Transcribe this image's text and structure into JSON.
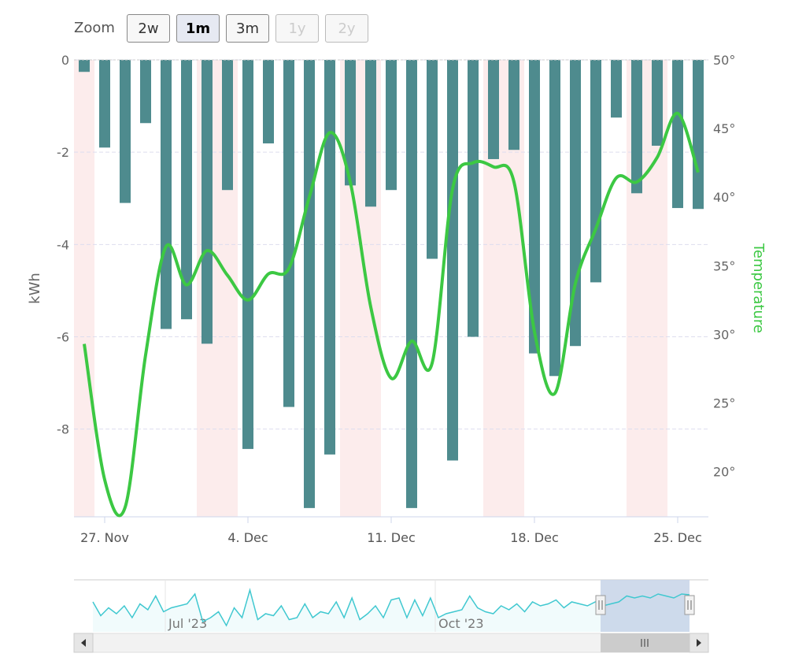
{
  "range_selector": {
    "label": "Zoom",
    "buttons": [
      {
        "label": "2w",
        "state": "normal"
      },
      {
        "label": "1m",
        "state": "selected"
      },
      {
        "label": "3m",
        "state": "normal"
      },
      {
        "label": "1y",
        "state": "disabled"
      },
      {
        "label": "2y",
        "state": "disabled"
      }
    ]
  },
  "chart_data": {
    "type": "bar+line",
    "x": [
      "2023-11-26",
      "2023-11-27",
      "2023-11-28",
      "2023-11-29",
      "2023-11-30",
      "2023-12-01",
      "2023-12-02",
      "2023-12-03",
      "2023-12-04",
      "2023-12-05",
      "2023-12-06",
      "2023-12-07",
      "2023-12-08",
      "2023-12-09",
      "2023-12-10",
      "2023-12-11",
      "2023-12-12",
      "2023-12-13",
      "2023-12-14",
      "2023-12-15",
      "2023-12-16",
      "2023-12-17",
      "2023-12-18",
      "2023-12-19",
      "2023-12-20",
      "2023-12-21",
      "2023-12-22",
      "2023-12-23",
      "2023-12-24",
      "2023-12-25",
      "2023-12-26"
    ],
    "series": [
      {
        "type": "column",
        "axis": "left",
        "color": "#4e8b8e",
        "values": [
          -0.26,
          -1.9,
          -3.1,
          -1.37,
          -5.83,
          -5.62,
          -6.15,
          -2.82,
          -8.43,
          -1.81,
          -7.52,
          -9.71,
          -8.55,
          -2.72,
          -3.18,
          -2.82,
          -9.71,
          -4.31,
          -8.68,
          -6.0,
          -2.15,
          -1.95,
          -6.36,
          -6.85,
          -6.2,
          -4.82,
          -1.25,
          -2.89,
          -1.86,
          -3.21,
          -3.23
        ]
      },
      {
        "type": "spline",
        "axis": "right",
        "color": "#3cc843",
        "values": [
          29.3,
          19.4,
          17.4,
          28.5,
          36.4,
          33.6,
          36.1,
          34.3,
          32.5,
          34.4,
          34.8,
          40.0,
          44.7,
          41.1,
          32.0,
          26.8,
          29.5,
          27.9,
          40.6,
          42.5,
          42.2,
          41.1,
          30.2,
          25.7,
          33.7,
          37.7,
          41.4,
          41.1,
          42.9,
          46.1,
          41.8
        ]
      }
    ],
    "weekend_bands": [
      [
        "2023-11-25",
        "2023-11-26"
      ],
      [
        "2023-12-02",
        "2023-12-03"
      ],
      [
        "2023-12-09",
        "2023-12-10"
      ],
      [
        "2023-12-16",
        "2023-12-17"
      ],
      [
        "2023-12-23",
        "2023-12-24"
      ]
    ],
    "band_color": "#fcecec",
    "x_ticks": [
      "27. Nov",
      "4. Dec",
      "11. Dec",
      "18. Dec",
      "25. Dec"
    ],
    "y_left": {
      "label": "kWh",
      "ticks": [
        "0",
        "-2",
        "-4",
        "-6",
        "-8"
      ],
      "range": [
        -9.9,
        0
      ]
    },
    "y_right": {
      "label": "Temperature",
      "ticks": [
        "50°",
        "45°",
        "40°",
        "35°",
        "30°",
        "25°",
        "20°"
      ],
      "range": [
        16.7,
        50
      ],
      "color": "#3cc843"
    },
    "grid": true,
    "navigator": {
      "ticks": [
        "Jul '23",
        "Oct '23"
      ],
      "color": "#40c8d0",
      "values": [
        0.6,
        0.25,
        0.45,
        0.3,
        0.5,
        0.2,
        0.55,
        0.4,
        0.75,
        0.35,
        0.45,
        0.5,
        0.55,
        0.8,
        0.1,
        0.2,
        0.35,
        0.0,
        0.45,
        0.2,
        0.9,
        0.15,
        0.3,
        0.25,
        0.5,
        0.15,
        0.2,
        0.55,
        0.2,
        0.35,
        0.3,
        0.6,
        0.2,
        0.7,
        0.15,
        0.3,
        0.5,
        0.2,
        0.65,
        0.7,
        0.2,
        0.65,
        0.25,
        0.7,
        0.2,
        0.3,
        0.35,
        0.4,
        0.75,
        0.45,
        0.35,
        0.3,
        0.5,
        0.4,
        0.55,
        0.35,
        0.6,
        0.5,
        0.55,
        0.65,
        0.45,
        0.6,
        0.55,
        0.5,
        0.6,
        0.5,
        0.55,
        0.6,
        0.75,
        0.7,
        0.75,
        0.7,
        0.8,
        0.75,
        0.7,
        0.8,
        0.78
      ]
    }
  }
}
